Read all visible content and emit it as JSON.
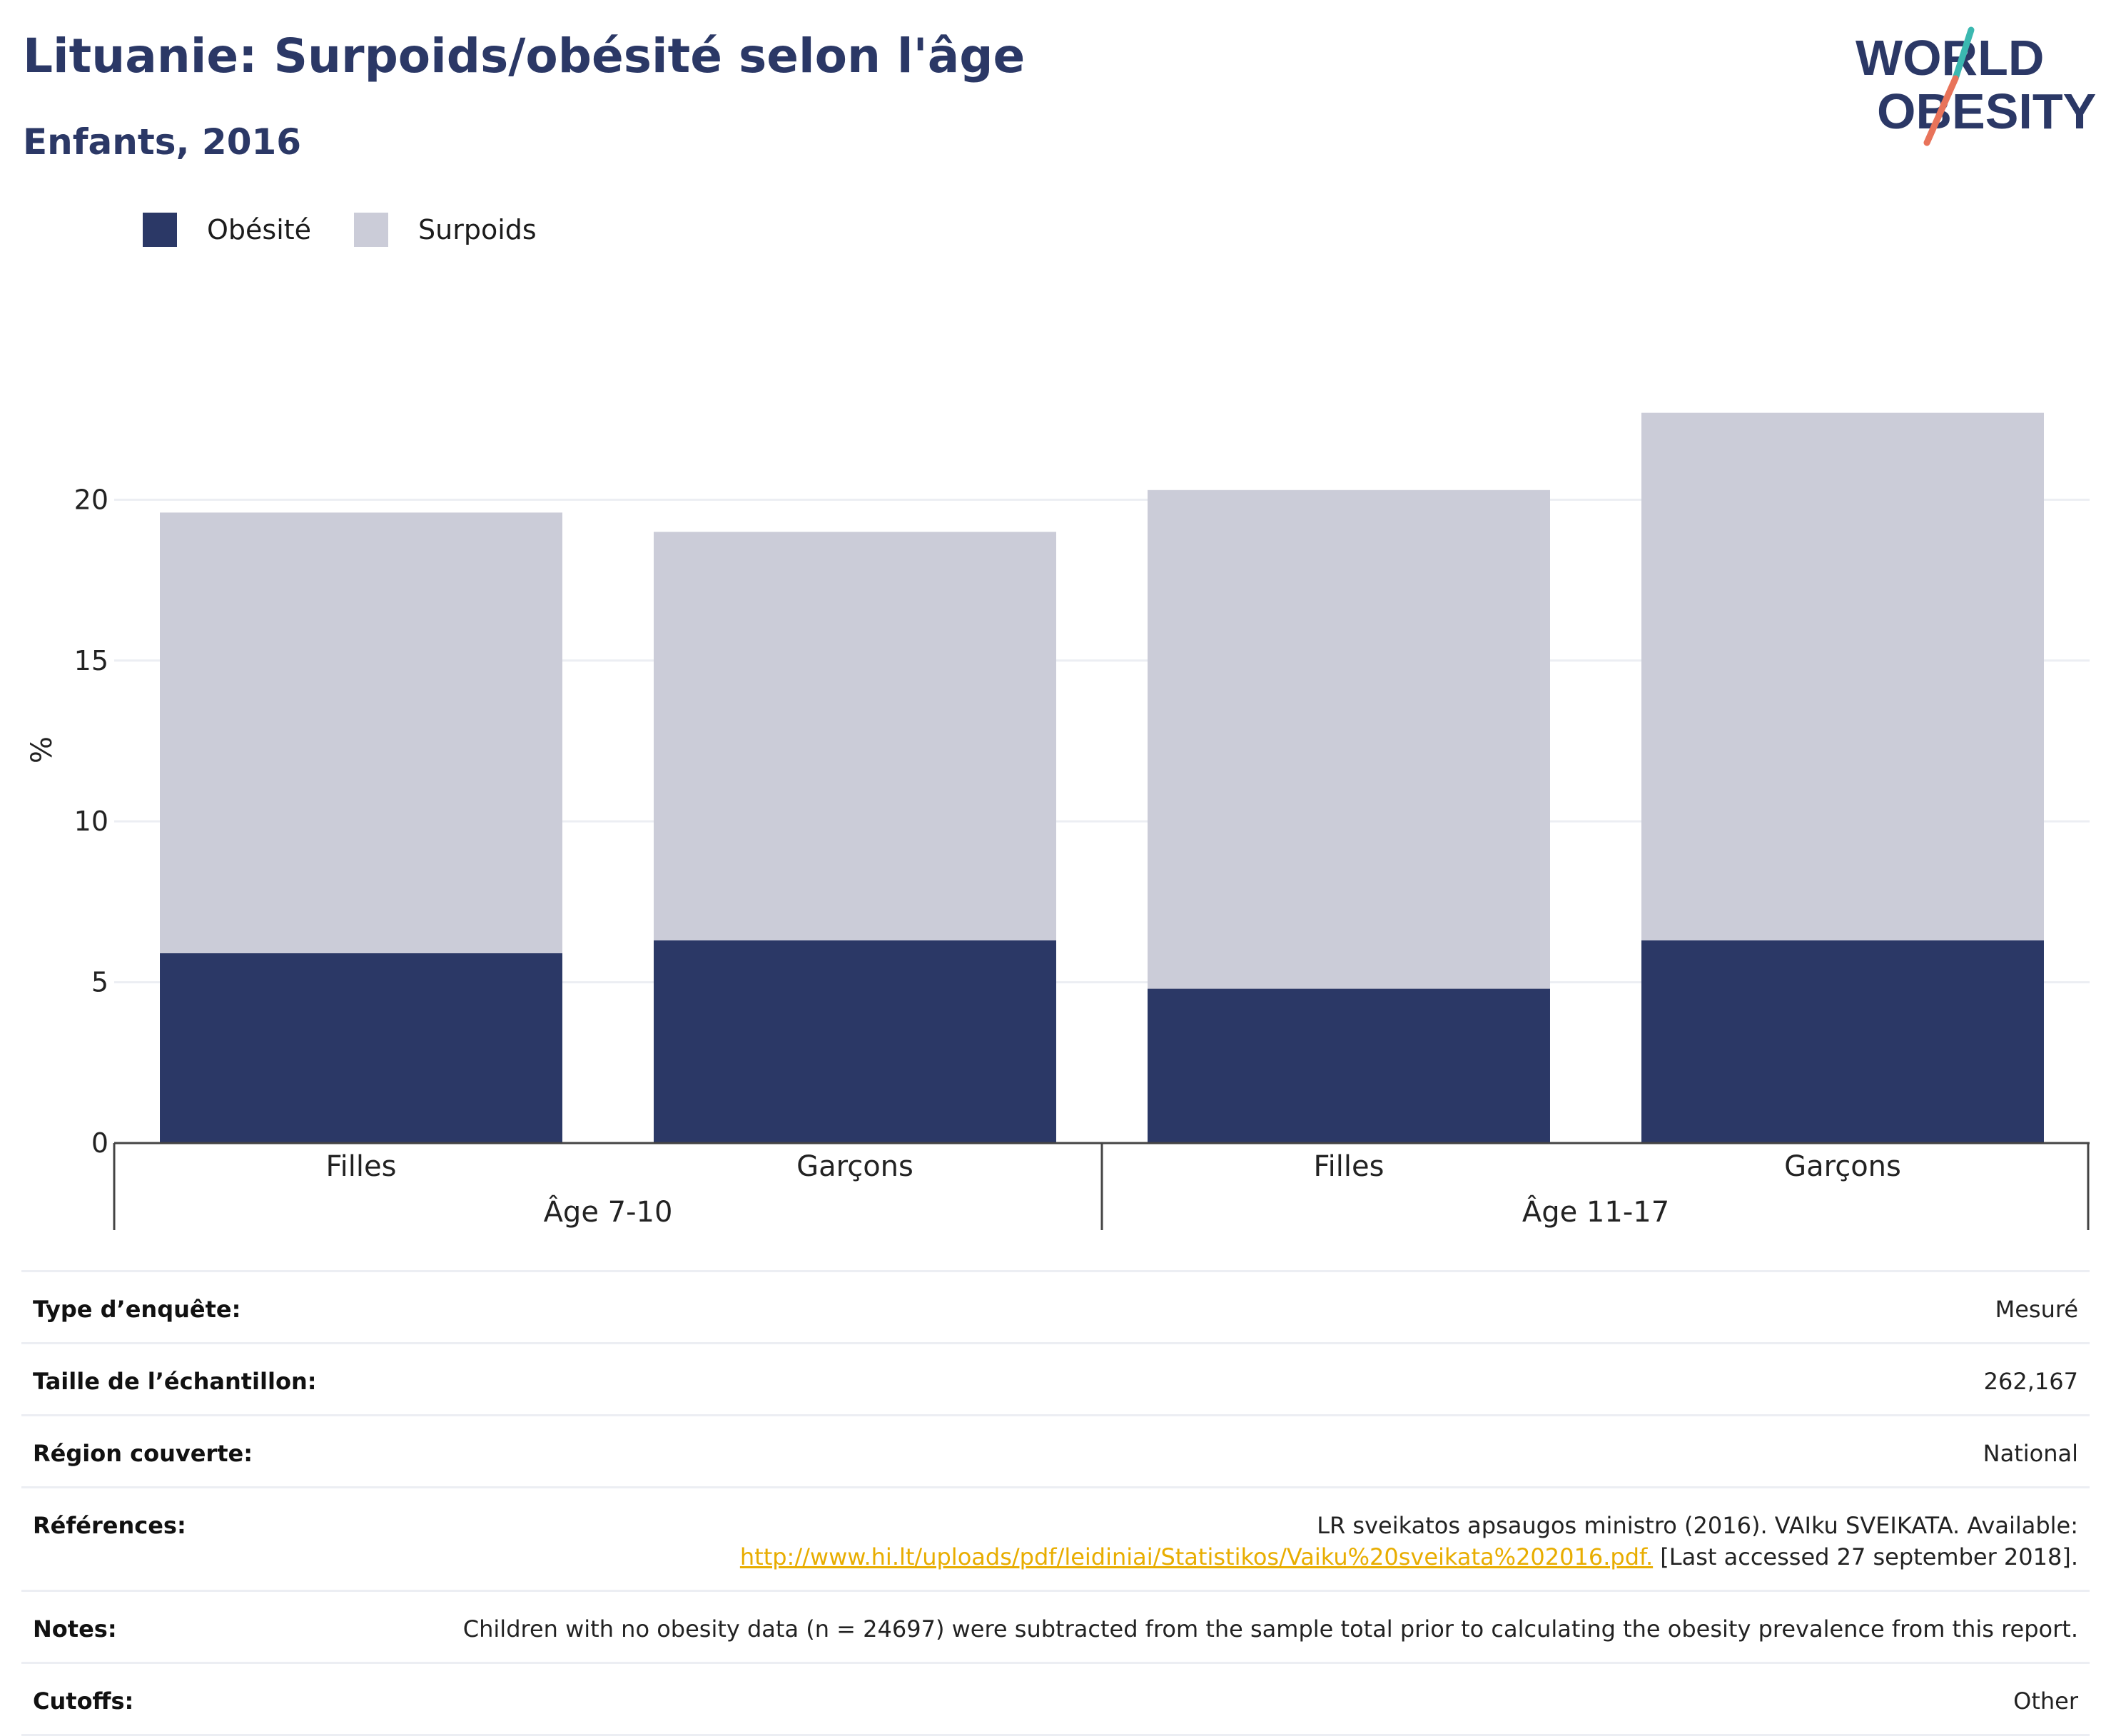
{
  "header": {
    "title": "Lituanie: Surpoids/obésité selon l'âge",
    "subtitle": "Enfants, 2016"
  },
  "logo": {
    "line1": "WORLD",
    "line2": "OBESITY"
  },
  "colors": {
    "obesity": "#2b3866",
    "overweight": "#cbccd8",
    "title": "#2b3866",
    "link": "#e8ad00",
    "logo_teal": "#3bb8b0",
    "logo_coral": "#e8735a"
  },
  "chart_data": {
    "type": "bar",
    "stacked": true,
    "ylabel": "%",
    "xlabel": "",
    "ylim": [
      0,
      24
    ],
    "yticks": [
      0,
      5,
      10,
      15,
      20
    ],
    "grid": true,
    "legend_position": "top-left",
    "categories": [
      "Filles",
      "Garçons",
      "Filles",
      "Garçons"
    ],
    "groups": [
      {
        "label": "Âge 7-10",
        "categories": [
          0,
          1
        ]
      },
      {
        "label": "Âge 11-17",
        "categories": [
          2,
          3
        ]
      }
    ],
    "series": [
      {
        "name": "Obésité",
        "values": [
          5.9,
          6.3,
          4.8,
          6.3
        ]
      },
      {
        "name": "Surpoids",
        "values": [
          13.7,
          12.7,
          15.5,
          16.4
        ]
      }
    ]
  },
  "info": {
    "rows": [
      {
        "label": "Type d’enquête:",
        "value": "Mesuré"
      },
      {
        "label": "Taille de l’échantillon:",
        "value": "262,167"
      },
      {
        "label": "Région couverte:",
        "value": "National"
      }
    ],
    "references": {
      "label": "Références:",
      "text": "LR sveikatos apsaugos ministro (2016). VAIku SVEIKATA. Available:",
      "link": "http://www.hi.lt/uploads/pdf/leidiniai/Statistikos/Vaiku%20sveikata%202016.pdf.",
      "suffix": " [Last accessed 27 september 2018]."
    },
    "notes": {
      "label": "Notes:",
      "value": "Children with no obesity data (n = 24697) were subtracted from the sample total prior to calculating the obesity prevalence from this report."
    },
    "cutoffs": {
      "label": "Cutoffs:",
      "value": "Other"
    }
  }
}
